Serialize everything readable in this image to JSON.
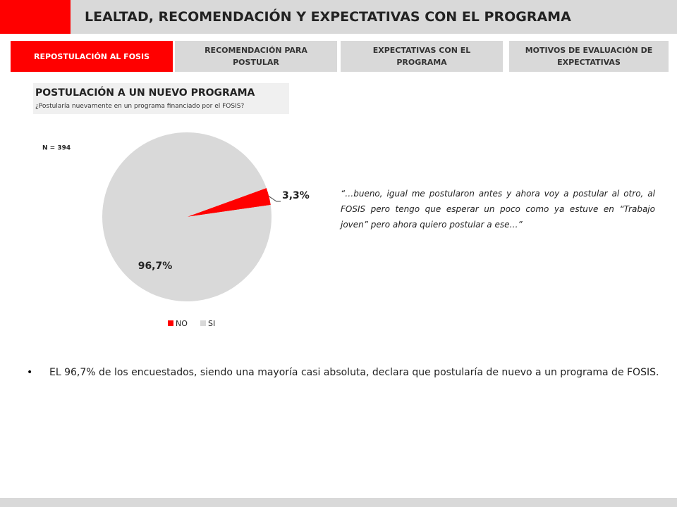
{
  "header": {
    "title": "LEALTAD, RECOMENDACIÓN Y EXPECTATIVAS CON EL PROGRAMA"
  },
  "tabs": [
    "REPOSTULACIÓN AL FOSIS",
    "RECOMENDACIÓN PARA POSTULAR",
    "EXPECTATIVAS CON EL PROGRAMA",
    "MOTIVOS DE EVALUACIÓN DE EXPECTATIVAS"
  ],
  "chart_data": {
    "type": "pie",
    "title": "POSTULACIÓN A UN NUEVO PROGRAMA",
    "subtitle": "¿Postularía nuevamente en un programa financiado por el FOSIS?",
    "annotation": "N = 394",
    "categories": [
      "NO",
      "SI"
    ],
    "values": [
      3.3,
      96.7
    ],
    "value_labels": [
      "3,3%",
      "96,7%"
    ],
    "colors": [
      "#ff0000",
      "#d9d9d9"
    ]
  },
  "quote": "“…bueno, igual me postularon antes y ahora voy a postular al otro, al FOSIS pero tengo que esperar un poco como ya estuve en “Trabajo joven” pero ahora quiero postular a ese…”",
  "bullets": [
    "EL 96,7% de los encuestados, siendo una mayoría casi absoluta, declara que postularía de nuevo a un programa de FOSIS."
  ]
}
